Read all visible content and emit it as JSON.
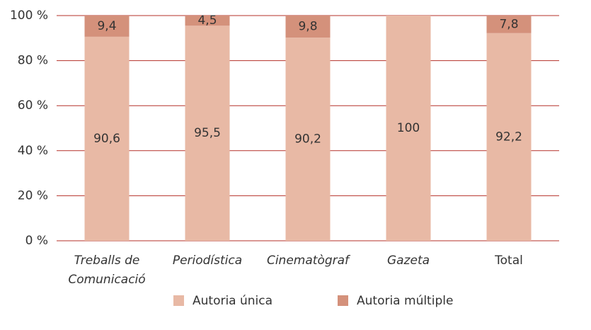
{
  "chart_data": {
    "type": "stacked_bar",
    "categories": [
      "Treballs de\nComunicació",
      "Periodística",
      "Cinematògraf",
      "Gazeta",
      "Total"
    ],
    "category_style": [
      "italic",
      "italic",
      "italic",
      "italic",
      "normal"
    ],
    "series": [
      {
        "name": "Autoria única",
        "color": "#e8b9a5",
        "values": [
          90.6,
          95.5,
          90.2,
          100,
          92.2
        ],
        "value_labels": [
          "90,6",
          "95,5",
          "90,2",
          "100",
          "92,2"
        ]
      },
      {
        "name": "Autoria múltiple",
        "color": "#d4917b",
        "values": [
          9.4,
          4.5,
          9.8,
          null,
          7.8
        ],
        "value_labels": [
          "9,4",
          "4,5",
          "9,8",
          null,
          "7,8"
        ]
      }
    ],
    "ylim": [
      0,
      100
    ],
    "yticks": [
      {
        "value": 0,
        "label": "0 %"
      },
      {
        "value": 20,
        "label": "20 %"
      },
      {
        "value": 40,
        "label": "40 %"
      },
      {
        "value": 60,
        "label": "60 %"
      },
      {
        "value": 80,
        "label": "80 %"
      },
      {
        "value": 100,
        "label": "100 %"
      }
    ],
    "grid": true,
    "grid_color": "#b5302a",
    "legend": "bottom"
  }
}
